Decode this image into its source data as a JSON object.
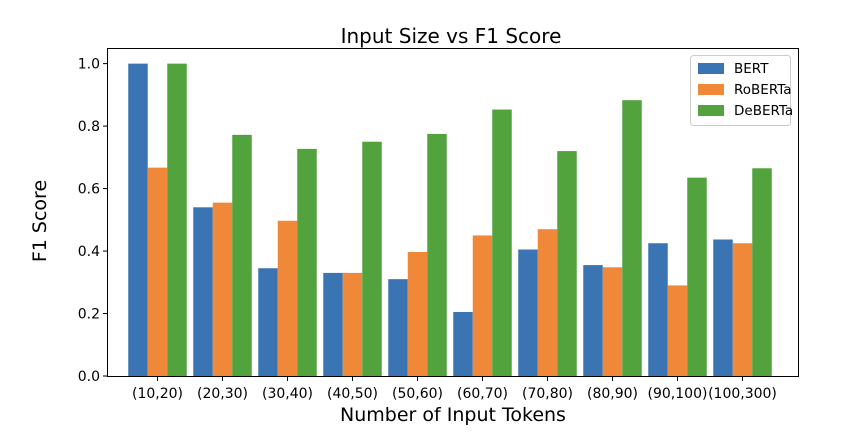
{
  "chart_data": {
    "type": "bar",
    "title": "Input Size vs F1 Score",
    "xlabel": "Number of Input Tokens",
    "ylabel": "F1 Score",
    "ylim": [
      0,
      1.05
    ],
    "yticks": [
      "0.0",
      "0.2",
      "0.4",
      "0.6",
      "0.8",
      "1.0"
    ],
    "categories": [
      "(10,20)",
      "(20,30)",
      "(30,40)",
      "(40,50)",
      "(50,60)",
      "(60,70)",
      "(70,80)",
      "(80,90)",
      "(90,100)",
      "(100,300)"
    ],
    "series": [
      {
        "name": "BERT",
        "color": "#3a74b2",
        "values": [
          1.0,
          0.54,
          0.345,
          0.33,
          0.31,
          0.205,
          0.405,
          0.355,
          0.425,
          0.437
        ]
      },
      {
        "name": "RoBERTa",
        "color": "#f0883a",
        "values": [
          0.667,
          0.555,
          0.497,
          0.33,
          0.397,
          0.45,
          0.47,
          0.348,
          0.29,
          0.425
        ]
      },
      {
        "name": "DeBERTa",
        "color": "#52a23e",
        "values": [
          1.0,
          0.772,
          0.727,
          0.75,
          0.775,
          0.853,
          0.72,
          0.883,
          0.635,
          0.665
        ]
      }
    ],
    "grid": false,
    "legend_position": "top-right"
  }
}
